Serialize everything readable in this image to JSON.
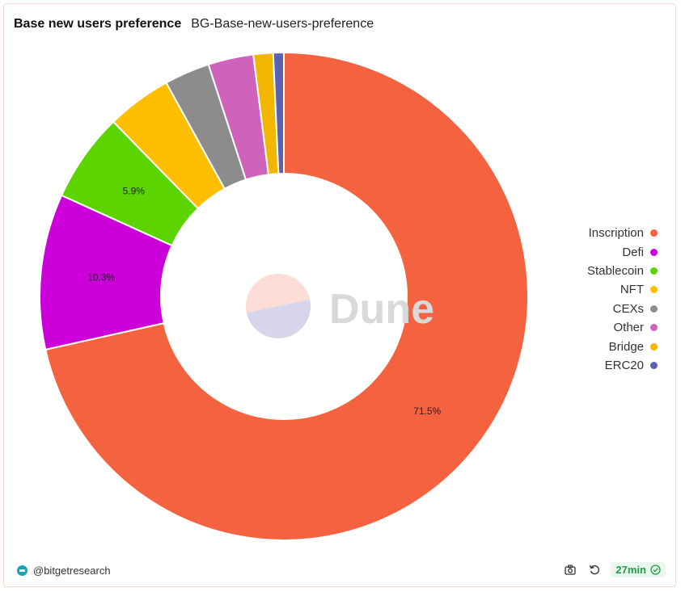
{
  "header": {
    "title": "Base new users preference",
    "subtitle": "BG-Base-new-users-preference"
  },
  "chart_data": {
    "type": "pie",
    "donut": true,
    "legend_position": "right",
    "slices": [
      {
        "name": "Inscription",
        "value": 71.5,
        "color": "#f4623f",
        "label": "71.5%"
      },
      {
        "name": "Defi",
        "value": 10.3,
        "color": "#cc00d9",
        "label": "10.3%"
      },
      {
        "name": "Stablecoin",
        "value": 5.9,
        "color": "#5cd400",
        "label": "5.9%"
      },
      {
        "name": "NFT",
        "value": 4.3,
        "color": "#ffbf00",
        "label": ""
      },
      {
        "name": "CEXs",
        "value": 3.0,
        "color": "#8c8c8c",
        "label": ""
      },
      {
        "name": "Other",
        "value": 3.0,
        "color": "#cf62ba",
        "label": ""
      },
      {
        "name": "Bridge",
        "value": 1.3,
        "color": "#f2b600",
        "label": ""
      },
      {
        "name": "ERC20",
        "value": 0.7,
        "color": "#5b62b4",
        "label": ""
      }
    ]
  },
  "watermark": {
    "text": "Dune"
  },
  "footer": {
    "author": "@bitgetresearch",
    "refresh_status": "27min"
  },
  "icons": {
    "brand": "bitget-logo-icon",
    "screenshot": "camera-icon",
    "refresh": "refresh-icon",
    "check": "check-circle-icon"
  }
}
